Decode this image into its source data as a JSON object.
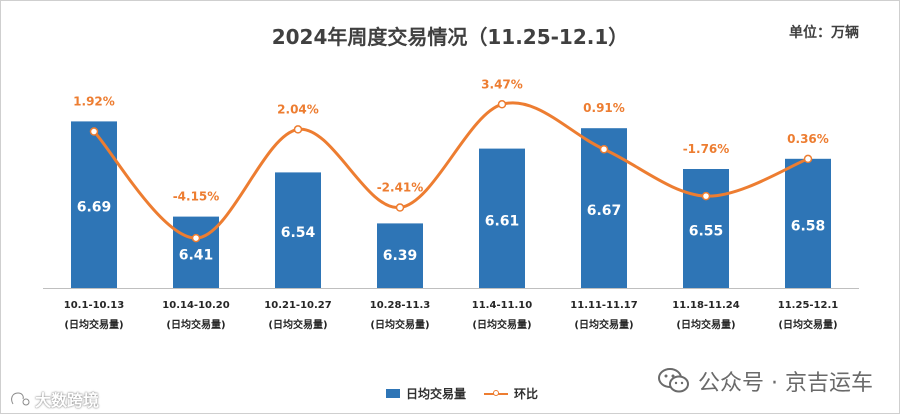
{
  "title": "2024年周度交易情况（11.25-12.1）",
  "unit_label": "单位：万辆",
  "chart_data": {
    "type": "bar",
    "categories": [
      "10.1-10.13",
      "10.14-10.20",
      "10.21-10.27",
      "10.28-11.3",
      "11.4-11.10",
      "11.11-11.17",
      "11.18-11.24",
      "11.25-12.1"
    ],
    "category_sublabel": "(日均交易量)",
    "series": [
      {
        "name": "日均交易量",
        "type": "bar",
        "values": [
          6.69,
          6.41,
          6.54,
          6.39,
          6.61,
          6.67,
          6.55,
          6.58
        ],
        "labels": [
          "6.69",
          "6.41",
          "6.54",
          "6.39",
          "6.61",
          "6.67",
          "6.55",
          "6.58"
        ],
        "color": "#2e75b6"
      },
      {
        "name": "环比",
        "type": "line",
        "values": [
          1.92,
          -4.15,
          2.04,
          -2.41,
          3.47,
          0.91,
          -1.76,
          0.36
        ],
        "labels": [
          "1.92%",
          "-4.15%",
          "2.04%",
          "-2.41%",
          "3.47%",
          "0.91%",
          "-1.76%",
          "0.36%"
        ],
        "color": "#ed7d31"
      }
    ],
    "bar_axis_min": 6.2,
    "bar_axis_max": 6.75,
    "line_axis_min": -5,
    "line_axis_max": 4,
    "grid": false,
    "legend_position": "bottom"
  },
  "watermark": {
    "text": "公众号 · 京吉运车",
    "icon": "wechat-icon"
  },
  "corner_mark": {
    "text": "大数跨境",
    "icon": "logo-icon"
  }
}
